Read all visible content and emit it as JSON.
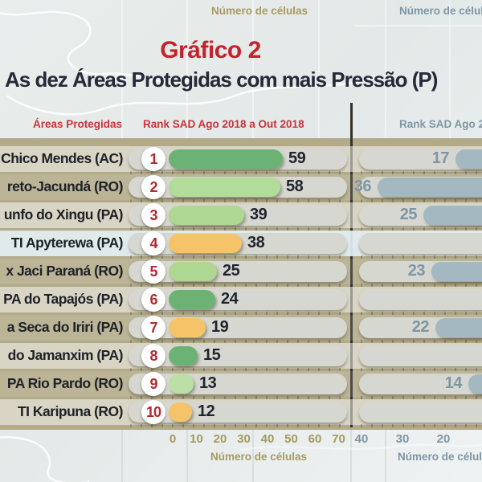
{
  "title": "Gráfico 2",
  "subtitle": "As dez Áreas Protegidas com mais Pressão (P)",
  "top_axis": {
    "left_label": "Número de células",
    "right_label": "Número de célul"
  },
  "column_headers": {
    "areas": "Áreas Protegidas",
    "rank_left": "Rank SAD Ago 2018 a Out 2018",
    "rank_right": "Rank SAD Ago 2"
  },
  "bottom_axis": {
    "left_label": "Número de células",
    "right_label": "Número de célul"
  },
  "colors": {
    "title_red": "#c4232b",
    "header_red": "#c9333a",
    "rank_red": "#b4282f",
    "blue_gray_text": "#7e96a4",
    "tan_text": "#a89a62",
    "dark_green_bar": "#6cb274",
    "light_green_bar": "#aed792",
    "orange_bar": "#f6c468",
    "blue_bar": "#a3b8c0",
    "track_gray": "#d6d7d1",
    "land_khaki": "#b2aa89"
  },
  "chart_data": {
    "type": "bar",
    "orientation": "horizontal",
    "title": "Gráfico 2",
    "subtitle": "As dez Áreas Protegidas com mais Pressão (P)",
    "xlabel": "Número de células",
    "categories": [
      "Chico Mendes (AC)",
      "reto-Jacundá (RO)",
      "unfo do Xingu (PA)",
      "TI Apyterewa (PA)",
      "x Jaci Paraná (RO)",
      "PA do Tapajós (PA)",
      "a Seca do Iriri (PA)",
      "do Jamanxim (PA)",
      "PA Rio Pardo (RO)",
      "TI Karipuna (RO)"
    ],
    "ranks": [
      "1",
      "2",
      "3",
      "4",
      "5",
      "6",
      "7",
      "8",
      "9",
      "10"
    ],
    "row_bands": [
      "light",
      "tan",
      "light",
      "highlight",
      "tan",
      "light",
      "tan",
      "light",
      "tan",
      "light"
    ],
    "series": [
      {
        "name": "Rank SAD Ago 2018 a Out 2018",
        "values": [
          59,
          58,
          39,
          38,
          25,
          24,
          19,
          15,
          13,
          12
        ],
        "bar_colors": [
          "#6cb274",
          "#b2dc99",
          "#aed792",
          "#f6c468",
          "#aed792",
          "#6cb274",
          "#f6c468",
          "#6cb274",
          "#bbdfa4",
          "#f6c468"
        ],
        "axis_ticks": [
          "0",
          "10",
          "20",
          "30",
          "40",
          "50",
          "60",
          "70"
        ],
        "xlim": [
          0,
          70
        ]
      },
      {
        "name": "Rank SAD Ago 2",
        "values": [
          17,
          36,
          25,
          null,
          23,
          null,
          22,
          null,
          14,
          null
        ],
        "bar_color": "#a3b8c0",
        "axis_ticks": [
          "40",
          "30",
          "20"
        ],
        "axis_reversed": true
      }
    ],
    "legend": null,
    "grid": "faint map graticule"
  }
}
